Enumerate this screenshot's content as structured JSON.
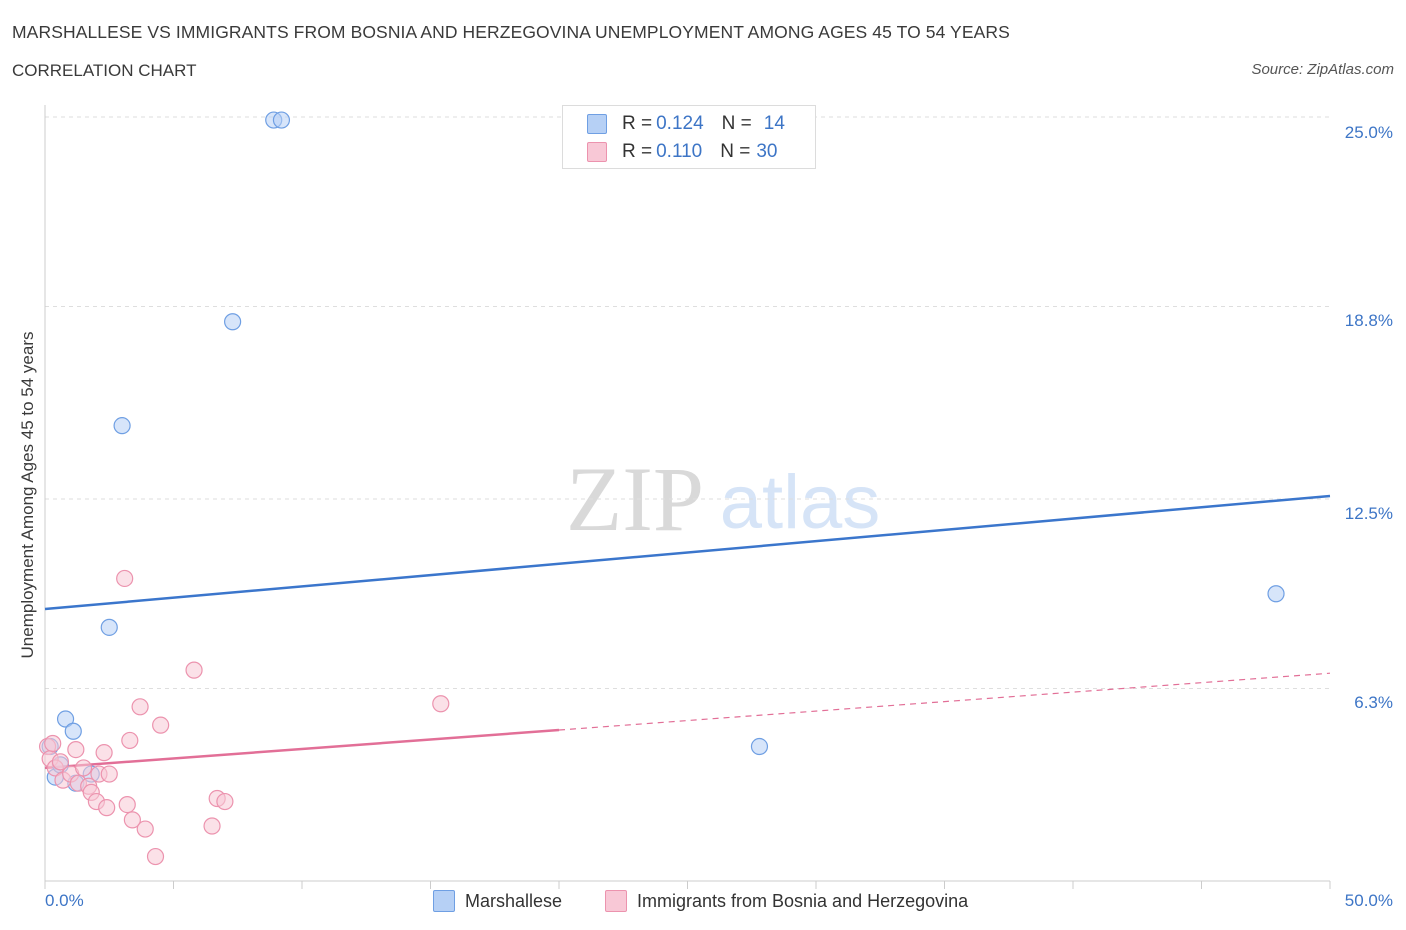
{
  "title": "MARSHALLESE VS IMMIGRANTS FROM BOSNIA AND HERZEGOVINA UNEMPLOYMENT AMONG AGES 45 TO 54 YEARS",
  "subtitle": "CORRELATION CHART",
  "source": "Source: ZipAtlas.com",
  "watermark": {
    "zip": "ZIP",
    "atlas": "atlas"
  },
  "legend": {
    "rows": [
      {
        "r_label": "R = ",
        "r_value": "0.124",
        "n_label": "N = ",
        "n_value": "14"
      },
      {
        "r_label": "R = ",
        "r_value": "0.110",
        "n_label": "N = ",
        "n_value": "30"
      }
    ]
  },
  "colors": {
    "blue_fill": "#b6d0f5",
    "blue_stroke": "#6f9fe3",
    "blue_line": "#3b76cc",
    "pink_fill": "#f8c8d6",
    "pink_stroke": "#ec93ae",
    "pink_line": "#e26f97",
    "tick": "#3d75c6"
  },
  "chart_data": {
    "type": "scatter",
    "title": "MARSHALLESE VS IMMIGRANTS FROM BOSNIA AND HERZEGOVINA UNEMPLOYMENT AMONG AGES 45 TO 54 YEARS",
    "xlabel": "",
    "ylabel": "Unemployment Among Ages 45 to 54 years",
    "xlim": [
      0,
      50
    ],
    "ylim": [
      0,
      25.0
    ],
    "x_tick_labels": [
      "0.0%",
      "50.0%"
    ],
    "y_ticks": [
      {
        "value": 6.3,
        "label": "6.3%"
      },
      {
        "value": 12.5,
        "label": "12.5%"
      },
      {
        "value": 18.8,
        "label": "18.8%"
      },
      {
        "value": 25.0,
        "label": "25.0%"
      }
    ],
    "series": [
      {
        "name": "Marshallese",
        "color": "blue",
        "points": [
          [
            0.2,
            4.4
          ],
          [
            0.4,
            3.4
          ],
          [
            0.8,
            5.3
          ],
          [
            1.1,
            4.9
          ],
          [
            1.2,
            3.2
          ],
          [
            1.8,
            3.5
          ],
          [
            2.5,
            8.3
          ],
          [
            3.0,
            14.9
          ],
          [
            7.3,
            18.3
          ],
          [
            8.9,
            24.9
          ],
          [
            9.2,
            24.9
          ],
          [
            27.8,
            4.4
          ],
          [
            47.9,
            9.4
          ],
          [
            0.6,
            3.8
          ]
        ],
        "trend": {
          "x0": 0,
          "y0": 8.9,
          "x1": 50,
          "y1": 12.6,
          "dashed_from": null
        }
      },
      {
        "name": "Immigrants from Bosnia and Herzegovina",
        "color": "pink",
        "points": [
          [
            0.1,
            4.4
          ],
          [
            0.2,
            4.0
          ],
          [
            0.4,
            3.7
          ],
          [
            0.6,
            3.9
          ],
          [
            0.7,
            3.3
          ],
          [
            1.0,
            3.5
          ],
          [
            1.2,
            4.3
          ],
          [
            1.3,
            3.2
          ],
          [
            1.5,
            3.7
          ],
          [
            1.7,
            3.1
          ],
          [
            1.8,
            2.9
          ],
          [
            2.0,
            2.6
          ],
          [
            2.1,
            3.5
          ],
          [
            2.3,
            4.2
          ],
          [
            2.4,
            2.4
          ],
          [
            2.5,
            3.5
          ],
          [
            3.2,
            2.5
          ],
          [
            3.3,
            4.6
          ],
          [
            3.4,
            2.0
          ],
          [
            3.7,
            5.7
          ],
          [
            3.9,
            1.7
          ],
          [
            4.3,
            0.8
          ],
          [
            4.5,
            5.1
          ],
          [
            5.8,
            6.9
          ],
          [
            6.5,
            1.8
          ],
          [
            6.7,
            2.7
          ],
          [
            7.0,
            2.6
          ],
          [
            3.1,
            9.9
          ],
          [
            15.4,
            5.8
          ],
          [
            0.3,
            4.5
          ]
        ],
        "trend": {
          "x0": 0,
          "y0": 3.7,
          "x1": 50,
          "y1": 6.8,
          "dashed_from": 20
        }
      }
    ]
  },
  "bottom_legend": [
    "Marshallese",
    "Immigrants from Bosnia and Herzegovina"
  ]
}
